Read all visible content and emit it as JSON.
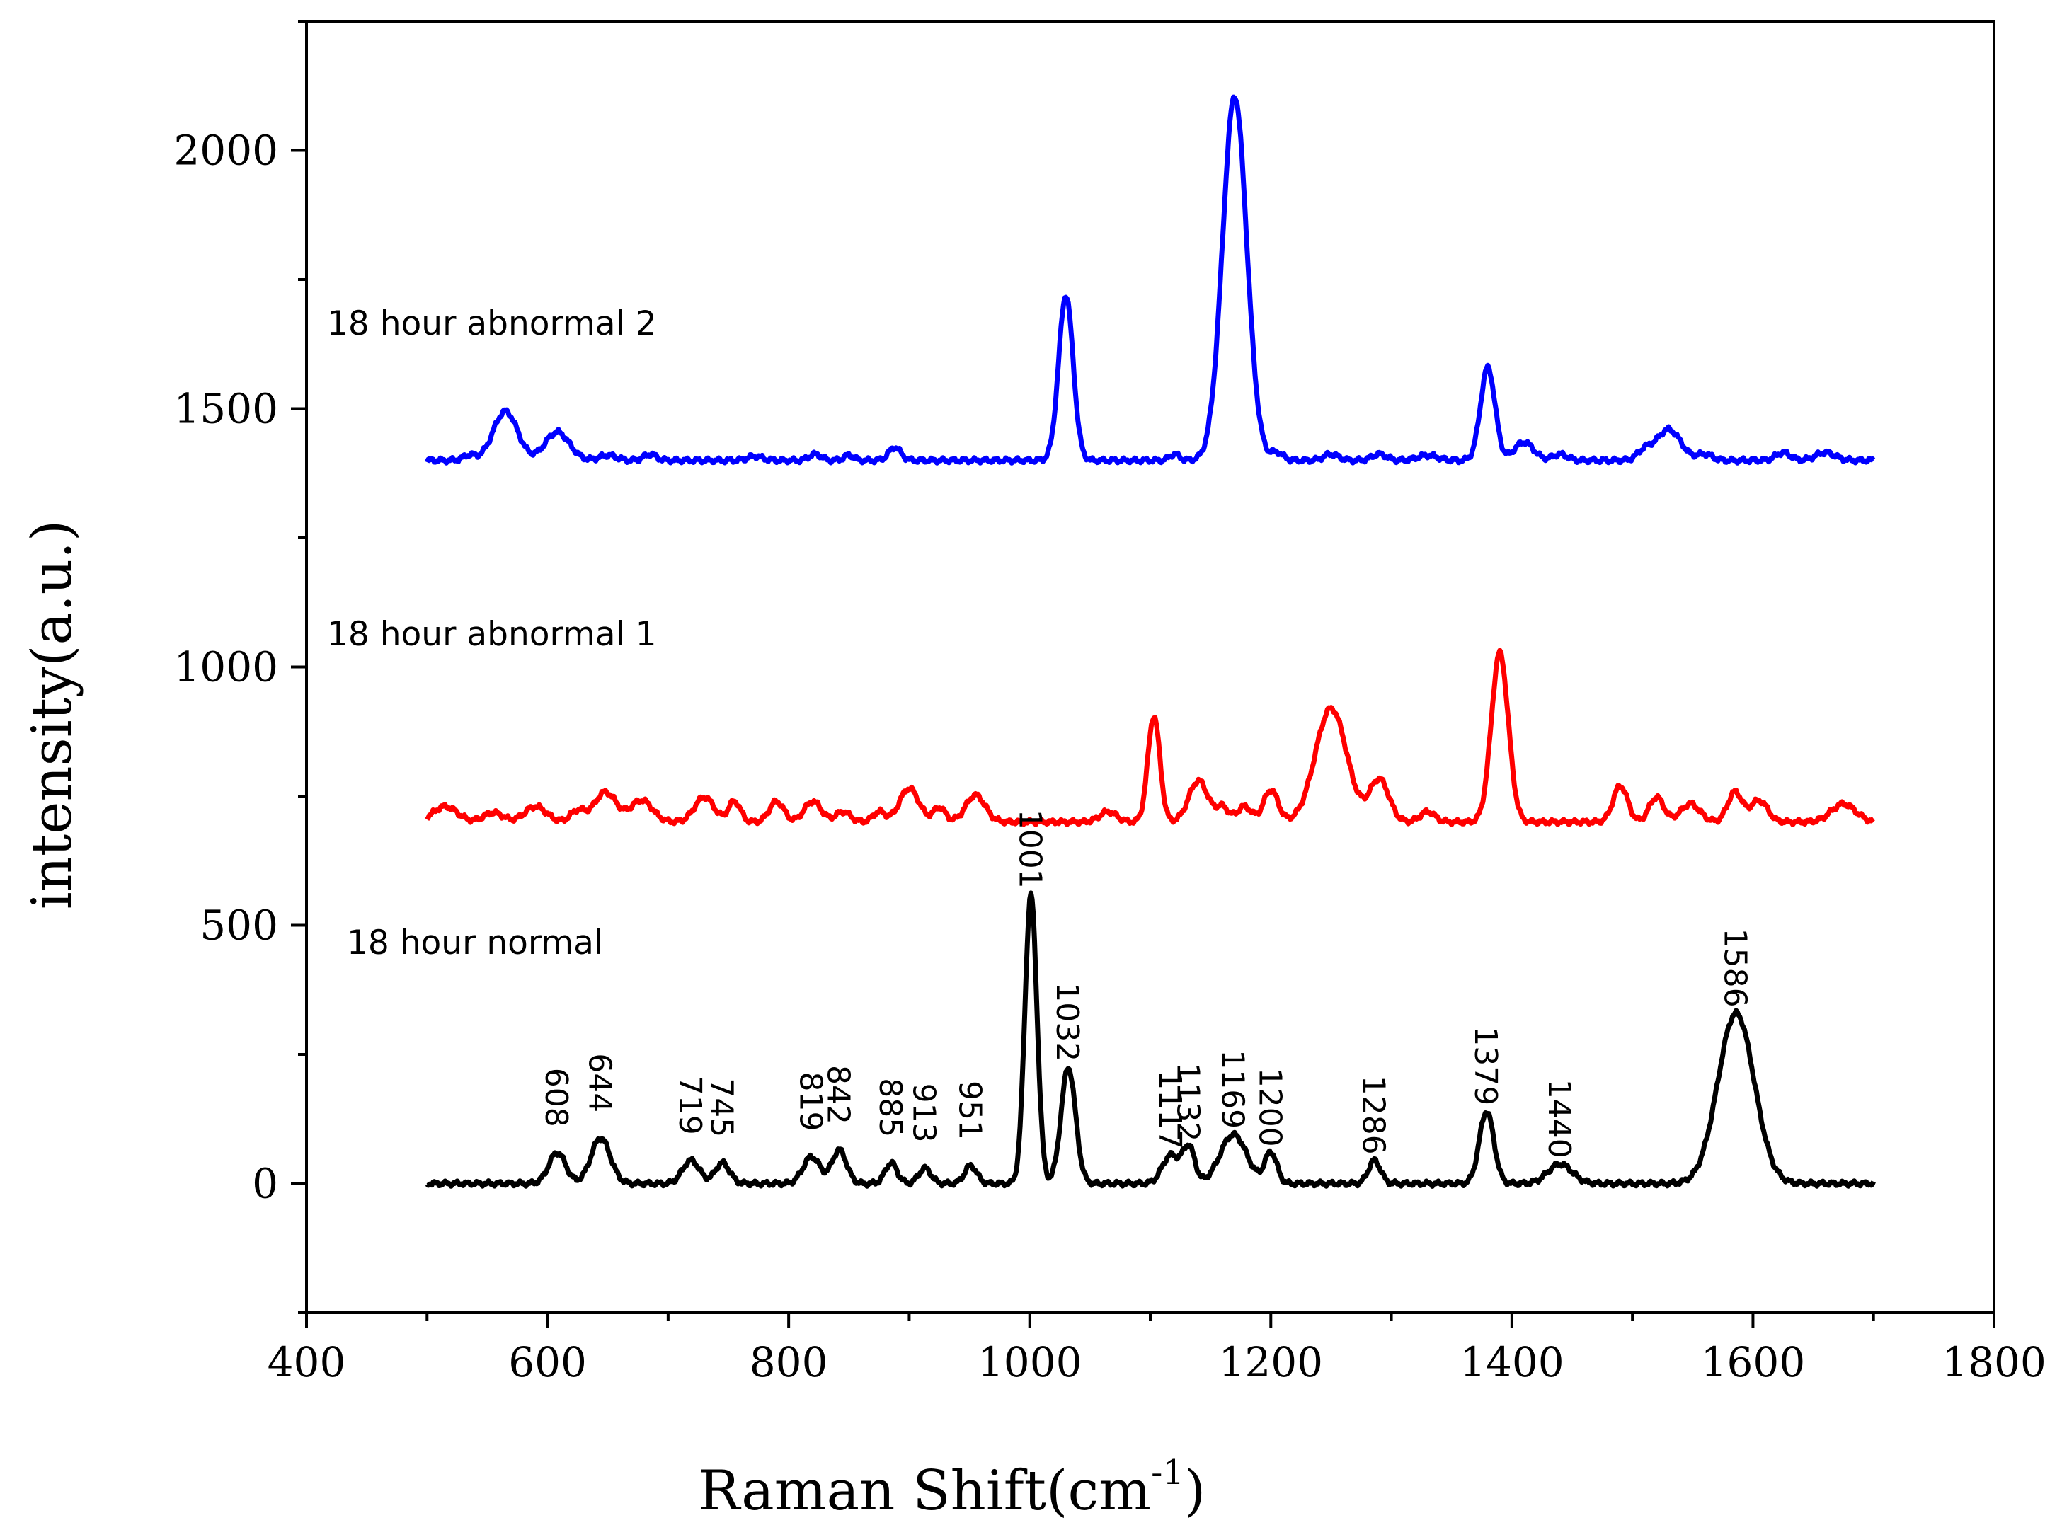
{
  "chart_data": {
    "type": "line",
    "title": "",
    "xlabel": "Raman Shift(cm",
    "xlabel_superscript": "-1",
    "xlabel_suffix": ")",
    "ylabel": "intensity(a.u.)",
    "xlim": [
      400,
      1800
    ],
    "ylim": [
      -250,
      2250
    ],
    "x_ticks": [
      400,
      600,
      800,
      1000,
      1200,
      1400,
      1600,
      1800
    ],
    "y_ticks": [
      0,
      500,
      1000,
      1500,
      2000
    ],
    "x_range": [
      500,
      1700
    ],
    "series": [
      {
        "name": "18 hour normal",
        "color": "#000000",
        "baseline": 0,
        "peaks": [
          [
            608,
            60,
            7
          ],
          [
            644,
            88,
            8
          ],
          [
            719,
            45,
            7
          ],
          [
            745,
            40,
            6
          ],
          [
            819,
            52,
            7
          ],
          [
            842,
            65,
            6
          ],
          [
            885,
            40,
            5
          ],
          [
            913,
            30,
            5
          ],
          [
            951,
            35,
            5
          ],
          [
            1001,
            560,
            5
          ],
          [
            1032,
            225,
            6
          ],
          [
            1117,
            55,
            7
          ],
          [
            1132,
            70,
            5
          ],
          [
            1169,
            95,
            11
          ],
          [
            1200,
            60,
            5
          ],
          [
            1286,
            45,
            5
          ],
          [
            1379,
            140,
            6
          ],
          [
            1440,
            38,
            10
          ],
          [
            1586,
            330,
            15
          ]
        ]
      },
      {
        "name": "18 hour abnormal 1",
        "color": "#ff0000",
        "baseline": 700,
        "peaks": [
          [
            515,
            30,
            10
          ],
          [
            555,
            18,
            8
          ],
          [
            590,
            30,
            9
          ],
          [
            625,
            22,
            6
          ],
          [
            648,
            58,
            9
          ],
          [
            678,
            42,
            9
          ],
          [
            730,
            48,
            8
          ],
          [
            755,
            40,
            5
          ],
          [
            790,
            40,
            6
          ],
          [
            820,
            40,
            7
          ],
          [
            845,
            20,
            6
          ],
          [
            875,
            20,
            5
          ],
          [
            900,
            65,
            8
          ],
          [
            925,
            28,
            5
          ],
          [
            955,
            52,
            8
          ],
          [
            1065,
            20,
            7
          ],
          [
            1103,
            205,
            5
          ],
          [
            1140,
            80,
            8
          ],
          [
            1160,
            28,
            5
          ],
          [
            1178,
            30,
            6
          ],
          [
            1200,
            62,
            6
          ],
          [
            1250,
            220,
            13
          ],
          [
            1290,
            82,
            8
          ],
          [
            1330,
            20,
            6
          ],
          [
            1390,
            328,
            7
          ],
          [
            1490,
            70,
            6
          ],
          [
            1520,
            48,
            6
          ],
          [
            1548,
            35,
            8
          ],
          [
            1585,
            58,
            6
          ],
          [
            1605,
            42,
            7
          ],
          [
            1675,
            35,
            10
          ]
        ]
      },
      {
        "name": "18 hour abnormal 2",
        "color": "#0000ff",
        "baseline": 1400,
        "peaks": [
          [
            535,
            10,
            5
          ],
          [
            565,
            95,
            10
          ],
          [
            608,
            55,
            10
          ],
          [
            650,
            10,
            7
          ],
          [
            685,
            12,
            5
          ],
          [
            772,
            8,
            6
          ],
          [
            822,
            12,
            5
          ],
          [
            850,
            10,
            4
          ],
          [
            888,
            25,
            5
          ],
          [
            1030,
            320,
            6
          ],
          [
            1120,
            12,
            4
          ],
          [
            1170,
            705,
            10
          ],
          [
            1205,
            15,
            5
          ],
          [
            1250,
            12,
            6
          ],
          [
            1290,
            12,
            6
          ],
          [
            1330,
            10,
            8
          ],
          [
            1380,
            180,
            6
          ],
          [
            1410,
            35,
            8
          ],
          [
            1440,
            12,
            6
          ],
          [
            1510,
            18,
            6
          ],
          [
            1530,
            60,
            10
          ],
          [
            1560,
            12,
            6
          ],
          [
            1625,
            15,
            6
          ],
          [
            1660,
            15,
            8
          ]
        ]
      }
    ],
    "peak_annotations": [
      {
        "label": "608",
        "x": 608,
        "y": 60
      },
      {
        "label": "644",
        "x": 644,
        "y": 88
      },
      {
        "label": "719",
        "x": 719,
        "y": 45
      },
      {
        "label": "745",
        "x": 745,
        "y": 40
      },
      {
        "label": "819",
        "x": 819,
        "y": 52
      },
      {
        "label": "842",
        "x": 842,
        "y": 65
      },
      {
        "label": "885",
        "x": 885,
        "y": 40
      },
      {
        "label": "913",
        "x": 913,
        "y": 30
      },
      {
        "label": "951",
        "x": 951,
        "y": 35
      },
      {
        "label": "1001",
        "x": 1001,
        "y": 560
      },
      {
        "label": "1032",
        "x": 1032,
        "y": 225
      },
      {
        "label": "1117",
        "x": 1117,
        "y": 55
      },
      {
        "label": "1132",
        "x": 1132,
        "y": 70
      },
      {
        "label": "1169",
        "x": 1169,
        "y": 95
      },
      {
        "label": "1200",
        "x": 1200,
        "y": 60
      },
      {
        "label": "1286",
        "x": 1286,
        "y": 45
      },
      {
        "label": "1379",
        "x": 1379,
        "y": 140
      },
      {
        "label": "1440",
        "x": 1440,
        "y": 38
      },
      {
        "label": "1586",
        "x": 1586,
        "y": 330
      }
    ]
  }
}
